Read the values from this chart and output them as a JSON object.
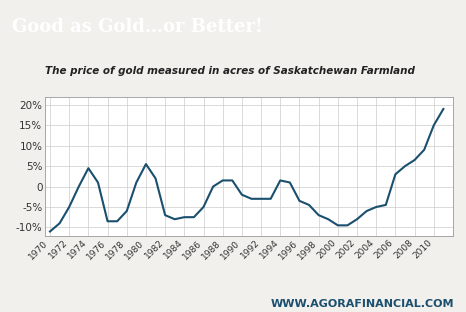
{
  "title": "Good as Gold…or Better!",
  "subtitle": "The price of gold measured in acres of Saskatchewan Farmland",
  "watermark": "WWW.AGORAFINANCIAL.COM",
  "title_bg_color": "#1a4f6e",
  "title_text_color": "#ffffff",
  "chart_bg_color": "#ffffff",
  "outer_bg_color": "#f2f0ec",
  "line_color": "#1a4f6e",
  "grid_color": "#cccccc",
  "years": [
    1970,
    1971,
    1972,
    1973,
    1974,
    1975,
    1976,
    1977,
    1978,
    1979,
    1980,
    1981,
    1982,
    1983,
    1984,
    1985,
    1986,
    1987,
    1988,
    1989,
    1990,
    1991,
    1992,
    1993,
    1994,
    1995,
    1996,
    1997,
    1998,
    1999,
    2000,
    2001,
    2002,
    2003,
    2004,
    2005,
    2006,
    2007,
    2008,
    2009,
    2010,
    2011
  ],
  "values": [
    -11,
    -9,
    -5,
    0,
    4.5,
    1,
    -8.5,
    -8.5,
    -6,
    1,
    5.5,
    2,
    -7,
    -8,
    -7.5,
    -7.5,
    -5,
    0,
    1.5,
    1.5,
    -2,
    -3,
    -3,
    -3,
    1.5,
    1,
    -3.5,
    -4.5,
    -7,
    -8,
    -9.5,
    -9.5,
    -8,
    -6,
    -5,
    -4.5,
    3,
    5,
    6.5,
    9,
    15,
    19
  ],
  "ylim": [
    -12,
    22
  ],
  "yticks": [
    -10,
    -5,
    0,
    5,
    10,
    15,
    20
  ],
  "ytick_labels": [
    "-10%",
    "-5%",
    "0",
    "5%",
    "10%",
    "15%",
    "20%"
  ],
  "xtick_years": [
    1970,
    1972,
    1974,
    1976,
    1978,
    1980,
    1982,
    1984,
    1986,
    1988,
    1990,
    1992,
    1994,
    1996,
    1998,
    2000,
    2002,
    2004,
    2006,
    2008,
    2010
  ],
  "subtitle_color": "#222222",
  "watermark_color": "#1a4f6e",
  "line_width": 1.5,
  "title_fontsize": 13,
  "subtitle_fontsize": 7.5,
  "ytick_fontsize": 7.5,
  "xtick_fontsize": 6.5,
  "watermark_fontsize": 8
}
